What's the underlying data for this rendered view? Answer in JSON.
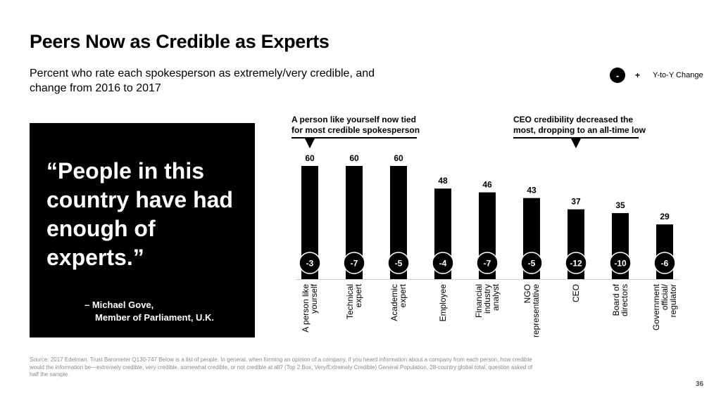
{
  "slide": {
    "title": "Peers Now as Credible as Experts",
    "subtitle": "Percent who rate each spokesperson as extremely/very credible, and change from 2016 to 2017",
    "legend": {
      "minus": "-",
      "plus": "+",
      "label": "Y-to-Y Change"
    },
    "quote": {
      "text": "“People in this country have had enough of experts.”",
      "attribution_line1": "– Michael Gove,",
      "attribution_line2": "Member of Parliament, U.K."
    },
    "source": "Source: 2017 Edelman. Trust Barometer Q130-747 Below is a list of people. In general, when forming an opinion of a company, if you heard information about a company from each person, how credible would the information be—extremely credible, very credible, somewhat credible, or not credible at all? (Top 2 Box, Very/Extremely Credible) General Population, 28-country global total, question asked of half the sample.",
    "page_number": "36"
  },
  "colors": {
    "bar": "#000000",
    "badge": "#000000",
    "badge_text": "#ffffff",
    "background": "#ffffff"
  },
  "chart_data": {
    "type": "bar",
    "categories": [
      [
        "A person like",
        "yourself"
      ],
      [
        "Technical",
        "expert"
      ],
      [
        "Academic",
        "expert"
      ],
      [
        "Employee"
      ],
      [
        "Financial",
        "industry",
        "analyst"
      ],
      [
        "NGO",
        "representative"
      ],
      [
        "CEO"
      ],
      [
        "Board of",
        "directors"
      ],
      [
        "Government",
        "official/",
        "regulator"
      ]
    ],
    "values": [
      60,
      60,
      60,
      48,
      46,
      43,
      37,
      35,
      29
    ],
    "changes": [
      "-3",
      "-7",
      "-5",
      "-4",
      "-7",
      "-5",
      "-12",
      "-10",
      "-6"
    ],
    "ylim": [
      0,
      60
    ],
    "grid": false,
    "annotations": [
      {
        "lines": [
          "A person like yourself now tied",
          "for most credible spokesperson"
        ],
        "span": [
          0,
          2
        ],
        "pointer": 0
      },
      {
        "lines": [
          "CEO credibility decreased the",
          "most, dropping to an all-time low"
        ],
        "span": [
          5,
          7
        ],
        "pointer": 6
      }
    ]
  }
}
